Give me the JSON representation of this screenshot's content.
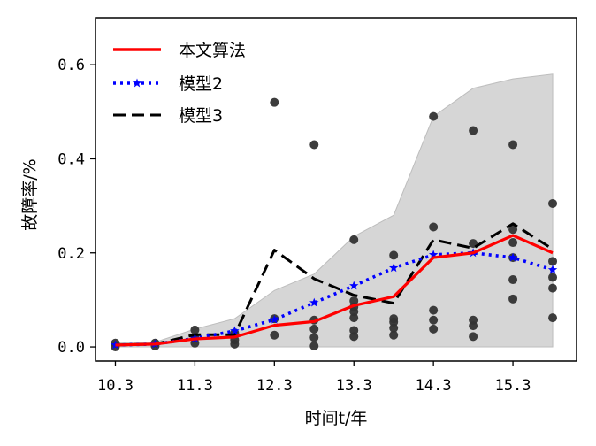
{
  "chart_data": {
    "type": "line",
    "title": "",
    "xlabel": "时间t/年",
    "ylabel": "故障率/%",
    "xlim": [
      10.05,
      16.1
    ],
    "ylim": [
      -0.03,
      0.7
    ],
    "xticks": [
      10.3,
      11.3,
      12.3,
      13.3,
      14.3,
      15.3
    ],
    "xtick_labels": [
      "10.3",
      "11.3",
      "12.3",
      "13.3",
      "14.3",
      "15.3"
    ],
    "yticks": [
      0.0,
      0.2,
      0.4,
      0.6
    ],
    "ytick_labels": [
      "0.0",
      "0.2",
      "0.4",
      "0.6"
    ],
    "grid": false,
    "legend_position": "top-left",
    "x": [
      10.3,
      10.8,
      11.3,
      11.8,
      12.3,
      12.8,
      13.3,
      13.8,
      14.3,
      14.8,
      15.3,
      15.8
    ],
    "series": [
      {
        "name": "本文算法",
        "style": "solid",
        "color": "#ff0000",
        "marker": "none",
        "values": [
          0.004,
          0.006,
          0.017,
          0.021,
          0.046,
          0.054,
          0.088,
          0.107,
          0.19,
          0.2,
          0.237,
          0.2
        ]
      },
      {
        "name": "模型2",
        "style": "dotted",
        "color": "#0000ff",
        "marker": "star",
        "values": [
          0.004,
          0.006,
          0.018,
          0.034,
          0.058,
          0.094,
          0.13,
          0.168,
          0.196,
          0.2,
          0.19,
          0.164
        ]
      },
      {
        "name": "模型3",
        "style": "dashed",
        "color": "#000000",
        "marker": "none",
        "values": [
          0.004,
          0.006,
          0.026,
          0.026,
          0.206,
          0.145,
          0.11,
          0.093,
          0.228,
          0.21,
          0.262,
          0.208
        ]
      }
    ],
    "band": {
      "color": "#d6d6d6",
      "lower": [
        0,
        0,
        0,
        0,
        0,
        0,
        0,
        0,
        0,
        0,
        0,
        0
      ],
      "upper": [
        0.008,
        0.01,
        0.038,
        0.06,
        0.12,
        0.155,
        0.235,
        0.28,
        0.49,
        0.55,
        0.57,
        0.58
      ]
    },
    "scatter": {
      "color": "#333333",
      "points": [
        [
          10.3,
          0.0
        ],
        [
          10.3,
          0.008
        ],
        [
          10.8,
          0.002
        ],
        [
          10.8,
          0.008
        ],
        [
          11.3,
          0.008
        ],
        [
          11.3,
          0.019
        ],
        [
          11.3,
          0.036
        ],
        [
          11.8,
          0.006
        ],
        [
          11.8,
          0.015
        ],
        [
          11.8,
          0.03
        ],
        [
          12.3,
          0.025
        ],
        [
          12.3,
          0.06
        ],
        [
          12.3,
          0.52
        ],
        [
          12.8,
          0.002
        ],
        [
          12.8,
          0.02
        ],
        [
          12.8,
          0.038
        ],
        [
          12.8,
          0.057
        ],
        [
          12.8,
          0.43
        ],
        [
          13.3,
          0.022
        ],
        [
          13.3,
          0.035
        ],
        [
          13.3,
          0.062
        ],
        [
          13.3,
          0.075
        ],
        [
          13.3,
          0.085
        ],
        [
          13.3,
          0.098
        ],
        [
          13.3,
          0.228
        ],
        [
          13.8,
          0.025
        ],
        [
          13.8,
          0.04
        ],
        [
          13.8,
          0.053
        ],
        [
          13.8,
          0.06
        ],
        [
          13.8,
          0.195
        ],
        [
          14.3,
          0.038
        ],
        [
          14.3,
          0.057
        ],
        [
          14.3,
          0.078
        ],
        [
          14.3,
          0.255
        ],
        [
          14.3,
          0.49
        ],
        [
          14.8,
          0.022
        ],
        [
          14.8,
          0.045
        ],
        [
          14.8,
          0.057
        ],
        [
          14.8,
          0.22
        ],
        [
          14.8,
          0.46
        ],
        [
          15.3,
          0.102
        ],
        [
          15.3,
          0.143
        ],
        [
          15.3,
          0.19
        ],
        [
          15.3,
          0.222
        ],
        [
          15.3,
          0.25
        ],
        [
          15.3,
          0.43
        ],
        [
          15.8,
          0.062
        ],
        [
          15.8,
          0.125
        ],
        [
          15.8,
          0.148
        ],
        [
          15.8,
          0.182
        ],
        [
          15.8,
          0.305
        ]
      ]
    }
  }
}
